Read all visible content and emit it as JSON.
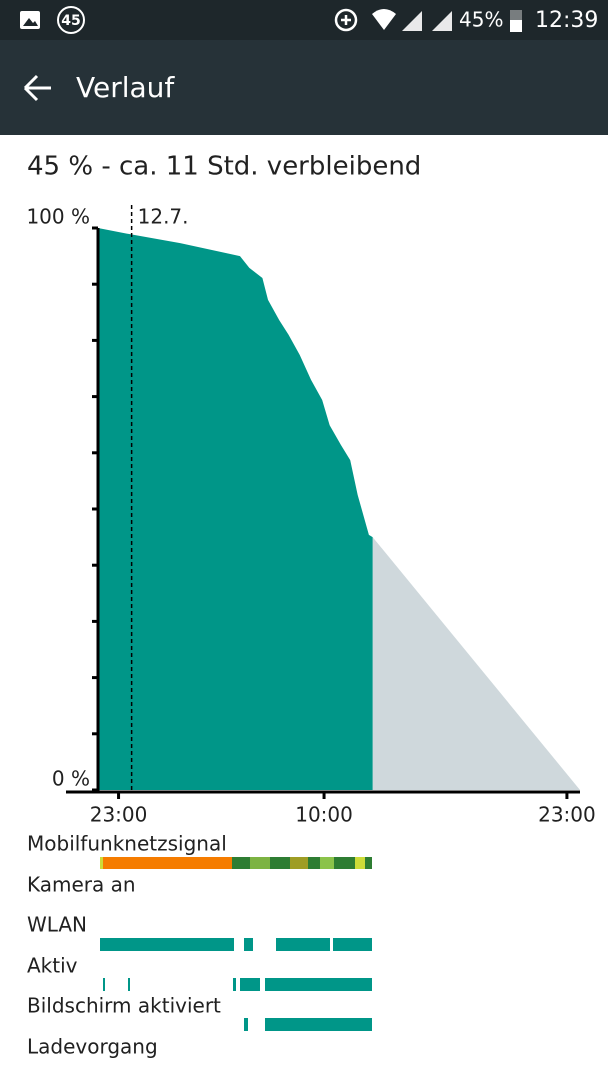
{
  "status_bar": {
    "notification_count": "45",
    "battery": "45%",
    "time": "12:39"
  },
  "header": {
    "title": "Verlauf"
  },
  "summary": "45 % - ca. 11 Std. verbleibend",
  "chart_data": {
    "type": "area",
    "xlim": [
      -1.1,
      24.7
    ],
    "ylim": [
      0,
      100
    ],
    "xticks": [
      {
        "value": 0,
        "label": "23:00"
      },
      {
        "value": 11,
        "label": "10:00"
      },
      {
        "value": 24,
        "label": "23:00"
      }
    ],
    "yticks": [
      {
        "value": 0,
        "label": "0 %"
      },
      {
        "value": 100,
        "label": "100 %"
      }
    ],
    "yminor_ticks": [
      10,
      20,
      30,
      40,
      50,
      60,
      70,
      80,
      90
    ],
    "marker": {
      "x": 0.7,
      "label": "12.7."
    },
    "series": [
      {
        "color": "#009688",
        "x": [
          -1.1,
          0.6,
          3.3,
          6.5,
          7.0,
          7.7,
          8.0,
          8.6,
          9.1,
          9.7,
          10.3,
          10.9,
          11.3,
          11.9,
          12.4,
          12.8,
          13.4,
          13.6
        ],
        "values": [
          100,
          98.9,
          97.3,
          95.0,
          92.9,
          91.1,
          87.2,
          83.6,
          81.0,
          77.4,
          73.0,
          69.4,
          64.9,
          61.4,
          58.7,
          52.5,
          45.4,
          45
        ]
      },
      {
        "color": "#cfd8dc",
        "x": [
          13.6,
          24.7
        ],
        "values": [
          45,
          0
        ]
      }
    ]
  },
  "activity": [
    "Mobilfunknetzsignal",
    "Kamera an",
    "WLAN",
    "Aktiv",
    "Bildschirm aktiviert",
    "Ladevorgang"
  ]
}
